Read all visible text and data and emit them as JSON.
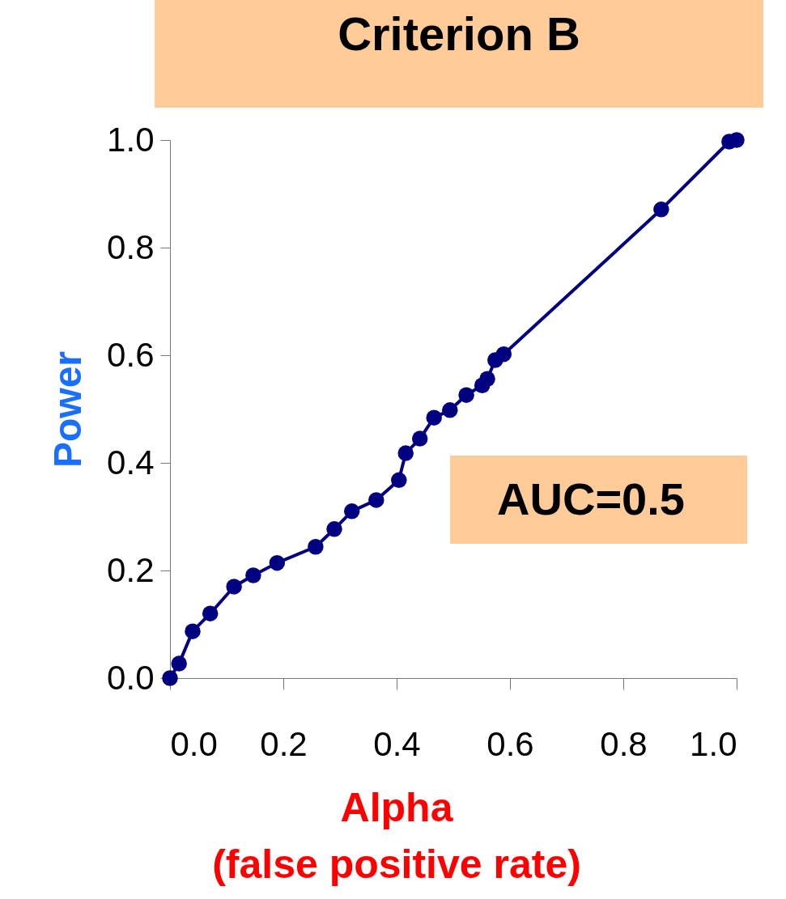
{
  "chart_data": {
    "type": "line",
    "title": "Criterion B",
    "xlabel": "Alpha\n(false positive rate)",
    "ylabel": "Power",
    "x": [
      0,
      0.016,
      0.04,
      0.071,
      0.113,
      0.147,
      0.189,
      0.257,
      0.29,
      0.321,
      0.364,
      0.404,
      0.416,
      0.441,
      0.466,
      0.494,
      0.523,
      0.551,
      0.56,
      0.574,
      0.589,
      0.867,
      0.987,
      1.0
    ],
    "series": [
      {
        "color": "#000080",
        "values": [
          0,
          0.027,
          0.087,
          0.12,
          0.17,
          0.191,
          0.214,
          0.244,
          0.277,
          0.31,
          0.331,
          0.368,
          0.418,
          0.445,
          0.484,
          0.498,
          0.526,
          0.544,
          0.556,
          0.591,
          0.602,
          0.871,
          0.997,
          1.0
        ]
      }
    ],
    "xlim": [
      0,
      1
    ],
    "xticks": [
      {
        "value": 0,
        "label": "0.0"
      },
      0.2,
      0.4,
      0.6,
      0.8,
      {
        "value": 1,
        "label": "1.0"
      }
    ],
    "ylim": [
      0,
      1
    ],
    "yticks": [
      {
        "value": 0,
        "label": "0.0"
      },
      0.2,
      0.4,
      0.6,
      0.8,
      {
        "value": 1,
        "label": "1.0"
      }
    ],
    "annotations": [
      "AUC=0.5"
    ],
    "grid": false,
    "marker": "circle",
    "line_style": "solid"
  }
}
